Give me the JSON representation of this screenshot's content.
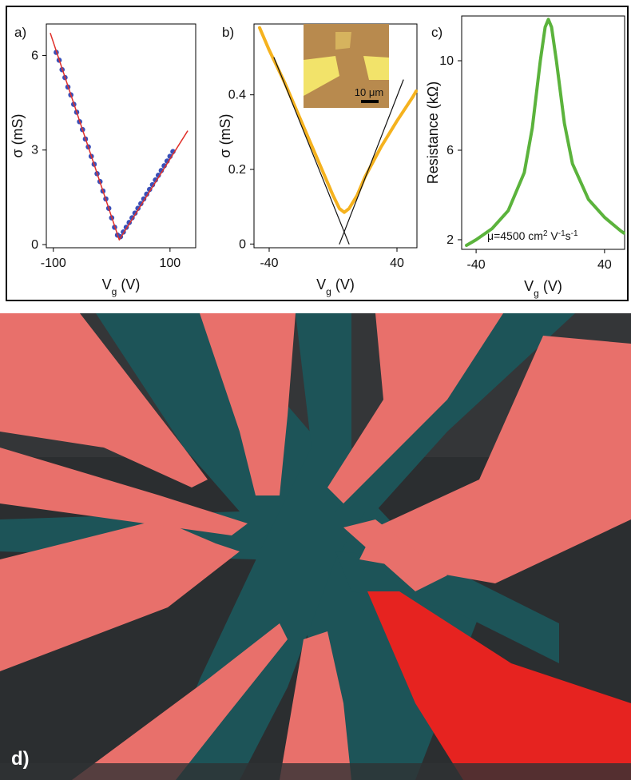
{
  "chart_data": [
    {
      "type": "scatter",
      "panel_label": "a)",
      "y_label": [
        {
          "text": "σ (mS)"
        }
      ],
      "x_label": [
        {
          "text": "V"
        },
        {
          "text": "g",
          "sub": true
        },
        {
          "text": " (V)"
        }
      ],
      "xlim": [
        -112,
        144
      ],
      "ylim": [
        -0.1,
        7.0
      ],
      "xticks": [
        -100,
        100
      ],
      "yticks": [
        0,
        3,
        6
      ],
      "series": [
        {
          "style": "markers",
          "color": "#3a4fb8",
          "x": [
            -95,
            -90,
            -85,
            -80,
            -75,
            -70,
            -65,
            -60,
            -55,
            -50,
            -45,
            -40,
            -35,
            -30,
            -25,
            -20,
            -15,
            -10,
            -5,
            0,
            5,
            10,
            15,
            20,
            25,
            30,
            35,
            40,
            45,
            50,
            55,
            60,
            65,
            70,
            75,
            80,
            85,
            90,
            95,
            100,
            105
          ],
          "values": [
            6.1,
            5.85,
            5.55,
            5.3,
            5.0,
            4.75,
            4.45,
            4.2,
            3.9,
            3.65,
            3.35,
            3.1,
            2.8,
            2.55,
            2.25,
            2.0,
            1.7,
            1.45,
            1.15,
            0.85,
            0.55,
            0.3,
            0.25,
            0.4,
            0.55,
            0.7,
            0.85,
            1.0,
            1.15,
            1.3,
            1.45,
            1.6,
            1.75,
            1.9,
            2.05,
            2.2,
            2.35,
            2.5,
            2.65,
            2.8,
            2.95
          ]
        },
        {
          "style": "line",
          "color": "#e0302a",
          "x": [
            -105,
            13,
            130
          ],
          "values": [
            6.7,
            0.15,
            3.6
          ]
        }
      ]
    },
    {
      "type": "scatter",
      "panel_label": "b)",
      "y_label": [
        {
          "text": "σ (mS)"
        }
      ],
      "x_label": [
        {
          "text": "V"
        },
        {
          "text": "g",
          "sub": true
        },
        {
          "text": " (V)"
        }
      ],
      "inset_label": "10 μm",
      "xlim": [
        -49.5,
        52.5
      ],
      "ylim": [
        -0.01,
        0.59
      ],
      "xticks": [
        -40,
        40
      ],
      "yticks": [
        0,
        0.2,
        0.4
      ],
      "series": [
        {
          "style": "line",
          "color": "#f5b21e",
          "width": 4,
          "x": [
            -46,
            -40,
            -30,
            -20,
            -10,
            0,
            4,
            7,
            10,
            15,
            20,
            30,
            40,
            50,
            52
          ],
          "values": [
            0.58,
            0.52,
            0.43,
            0.33,
            0.23,
            0.13,
            0.095,
            0.085,
            0.095,
            0.13,
            0.18,
            0.26,
            0.33,
            0.395,
            0.41
          ]
        },
        {
          "style": "line",
          "color": "#111111",
          "width": 1.2,
          "x": [
            -37,
            10
          ],
          "values": [
            0.5,
            0.0
          ]
        },
        {
          "style": "line",
          "color": "#111111",
          "width": 1.2,
          "x": [
            4,
            44
          ],
          "values": [
            0.0,
            0.44
          ]
        }
      ]
    },
    {
      "type": "scatter",
      "panel_label": "c)",
      "y_label": [
        {
          "text": "Resistance (kΩ)"
        }
      ],
      "x_label": [
        {
          "text": "V"
        },
        {
          "text": "g",
          "sub": true
        },
        {
          "text": " (V)"
        }
      ],
      "annotation": [
        {
          "text": "μ=4500 cm"
        },
        {
          "text": "2",
          "sup": true
        },
        {
          "text": " V"
        },
        {
          "text": "-1",
          "sup": true
        },
        {
          "text": "s"
        },
        {
          "text": "-1",
          "sup": true
        }
      ],
      "xlim": [
        -49,
        52.5
      ],
      "ylim": [
        1.57,
        12
      ],
      "xticks": [
        -40,
        40
      ],
      "yticks": [
        2,
        6,
        10
      ],
      "series": [
        {
          "style": "line",
          "color": "#5bb33c",
          "width": 4,
          "x": [
            -46,
            -40,
            -30,
            -20,
            -10,
            -5,
            0,
            3,
            5,
            7,
            10,
            15,
            20,
            30,
            40,
            50,
            52
          ],
          "values": [
            1.75,
            2.0,
            2.5,
            3.3,
            5.0,
            7.0,
            10.0,
            11.5,
            11.85,
            11.5,
            10.0,
            7.2,
            5.4,
            3.8,
            3.0,
            2.4,
            2.3
          ]
        }
      ]
    }
  ],
  "panel_d": {
    "label": "d)"
  }
}
